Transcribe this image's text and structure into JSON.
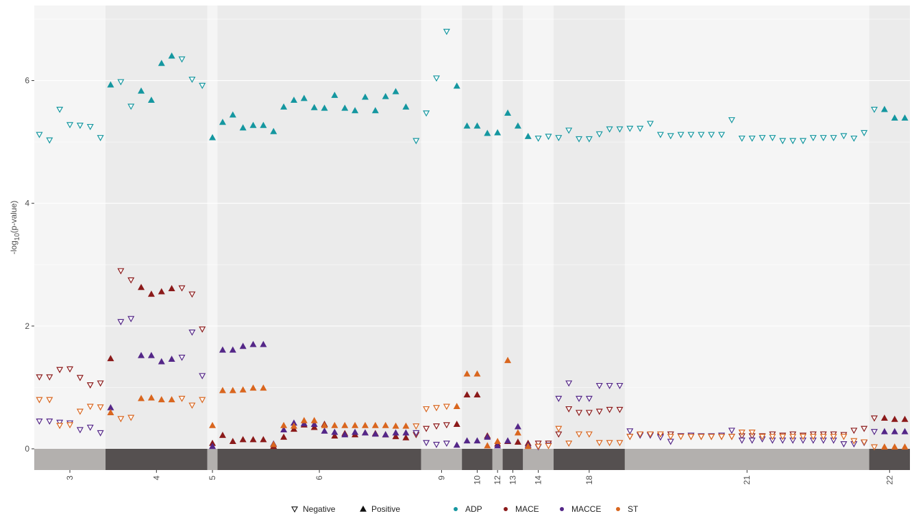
{
  "chart_data": {
    "type": "scatter",
    "ylabel_main": "-log",
    "ylabel_sub": "10",
    "ylabel_tail": "(p-value)",
    "ylim": [
      0,
      7
    ],
    "yticks": [
      0,
      2,
      4,
      6
    ],
    "grid": true,
    "legend_placement": "bottom",
    "legend": {
      "shapes": [
        {
          "label": "Negative",
          "shape": "open-down-triangle"
        },
        {
          "label": "Positive",
          "shape": "filled-up-triangle"
        }
      ],
      "colors": [
        {
          "label": "ADP",
          "color": "#1597a0"
        },
        {
          "label": "MACE",
          "color": "#8b1a1a"
        },
        {
          "label": "MACCE",
          "color": "#542788"
        },
        {
          "label": "ST",
          "color": "#d9661f"
        }
      ]
    },
    "chromosomes": [
      {
        "label": "3",
        "start": 0,
        "end": 7
      },
      {
        "label": "4",
        "start": 7,
        "end": 17
      },
      {
        "label": "5",
        "start": 17,
        "end": 18
      },
      {
        "label": "6",
        "start": 18,
        "end": 38
      },
      {
        "label": "9",
        "start": 38,
        "end": 42
      },
      {
        "label": "10",
        "start": 42,
        "end": 45
      },
      {
        "label": "12",
        "start": 45,
        "end": 46
      },
      {
        "label": "13",
        "start": 46,
        "end": 48
      },
      {
        "label": "14",
        "start": 48,
        "end": 51
      },
      {
        "label": "18",
        "start": 51,
        "end": 58
      },
      {
        "label": "21",
        "start": 58,
        "end": 82
      },
      {
        "label": "22",
        "start": 82,
        "end": 86
      }
    ],
    "sign_by_position": [
      "N",
      "N",
      "N",
      "N",
      "N",
      "N",
      "N",
      "P",
      "N",
      "N",
      "P",
      "P",
      "P",
      "P",
      "N",
      "N",
      "N",
      "P",
      "P",
      "P",
      "P",
      "P",
      "P",
      "P",
      "P",
      "P",
      "P",
      "P",
      "P",
      "P",
      "P",
      "P",
      "P",
      "P",
      "P",
      "P",
      "P",
      "N",
      "N",
      "N",
      "N",
      "P",
      "P",
      "P",
      "P",
      "P",
      "P",
      "P",
      "P",
      "N",
      "N",
      "N",
      "N",
      "N",
      "N",
      "N",
      "N",
      "N",
      "N",
      "N",
      "N",
      "N",
      "N",
      "N",
      "N",
      "N",
      "N",
      "N",
      "N",
      "N",
      "N",
      "N",
      "N",
      "N",
      "N",
      "N",
      "N",
      "N",
      "N",
      "N",
      "N",
      "N",
      "N",
      "P",
      "P",
      "P"
    ],
    "series": [
      {
        "name": "ADP",
        "values": [
          5.12,
          5.03,
          5.53,
          5.28,
          5.27,
          5.25,
          5.07,
          5.93,
          5.98,
          5.58,
          5.83,
          5.68,
          6.28,
          6.4,
          6.35,
          6.02,
          5.92,
          5.07,
          5.32,
          5.44,
          5.23,
          5.27,
          5.27,
          5.17,
          5.57,
          5.68,
          5.71,
          5.56,
          5.55,
          5.76,
          5.55,
          5.51,
          5.73,
          5.51,
          5.74,
          5.82,
          5.57,
          5.02,
          5.47,
          6.04,
          6.8,
          5.91,
          5.26,
          5.26,
          5.14,
          5.15,
          5.47,
          5.26,
          5.09,
          5.06,
          5.09,
          5.07,
          5.19,
          5.05,
          5.05,
          5.13,
          5.21,
          5.21,
          5.22,
          5.22,
          5.3,
          5.12,
          5.1,
          5.12,
          5.12,
          5.12,
          5.12,
          5.12,
          5.36,
          5.06,
          5.06,
          5.07,
          5.07,
          5.02,
          5.02,
          5.02,
          5.07,
          5.07,
          5.07,
          5.1,
          5.06,
          5.15,
          5.53,
          5.53,
          5.39,
          5.39
        ]
      },
      {
        "name": "MACE",
        "values": [
          1.17,
          1.17,
          1.29,
          1.3,
          1.16,
          1.04,
          1.07,
          1.47,
          2.9,
          2.75,
          2.63,
          2.52,
          2.56,
          2.61,
          2.62,
          2.52,
          1.95,
          0.09,
          0.22,
          0.12,
          0.15,
          0.15,
          0.15,
          0.04,
          0.19,
          0.32,
          0.39,
          0.35,
          0.4,
          0.21,
          0.25,
          0.23,
          0.26,
          0.25,
          0.23,
          0.2,
          0.18,
          0.23,
          0.33,
          0.37,
          0.39,
          0.4,
          0.88,
          0.88,
          0.21,
          0.08,
          0.12,
          0.11,
          0.09,
          0.09,
          0.09,
          0.24,
          0.65,
          0.59,
          0.59,
          0.61,
          0.64,
          0.64,
          0.2,
          0.23,
          0.23,
          0.21,
          0.24,
          0.21,
          0.2,
          0.2,
          0.2,
          0.2,
          0.2,
          0.21,
          0.21,
          0.21,
          0.24,
          0.22,
          0.24,
          0.22,
          0.24,
          0.24,
          0.24,
          0.23,
          0.3,
          0.33,
          0.5,
          0.5,
          0.48,
          0.48
        ]
      },
      {
        "name": "MACCE",
        "values": [
          0.45,
          0.45,
          0.43,
          0.42,
          0.31,
          0.35,
          0.26,
          0.67,
          2.07,
          2.12,
          1.52,
          1.52,
          1.42,
          1.46,
          1.49,
          1.9,
          1.19,
          0.04,
          1.61,
          1.61,
          1.67,
          1.7,
          1.7,
          0.08,
          0.31,
          0.42,
          0.41,
          0.4,
          0.29,
          0.27,
          0.23,
          0.27,
          0.26,
          0.24,
          0.23,
          0.26,
          0.26,
          0.26,
          0.1,
          0.07,
          0.09,
          0.06,
          0.13,
          0.13,
          0.19,
          0.05,
          0.13,
          0.36,
          0.06,
          0.03,
          0.06,
          0.82,
          1.07,
          0.82,
          0.82,
          1.03,
          1.03,
          1.03,
          0.29,
          0.22,
          0.22,
          0.19,
          0.12,
          0.21,
          0.22,
          0.21,
          0.21,
          0.22,
          0.3,
          0.14,
          0.14,
          0.16,
          0.14,
          0.14,
          0.14,
          0.14,
          0.14,
          0.14,
          0.14,
          0.08,
          0.08,
          0.1,
          0.28,
          0.28,
          0.28,
          0.28
        ]
      },
      {
        "name": "ST",
        "values": [
          0.8,
          0.8,
          0.38,
          0.39,
          0.61,
          0.69,
          0.68,
          0.59,
          0.49,
          0.51,
          0.82,
          0.83,
          0.8,
          0.8,
          0.82,
          0.71,
          0.8,
          0.38,
          0.95,
          0.95,
          0.96,
          0.99,
          0.99,
          0.07,
          0.38,
          0.37,
          0.46,
          0.46,
          0.38,
          0.38,
          0.38,
          0.38,
          0.38,
          0.38,
          0.38,
          0.37,
          0.37,
          0.37,
          0.65,
          0.67,
          0.69,
          0.69,
          1.22,
          1.22,
          0.05,
          0.12,
          1.44,
          0.26,
          0.04,
          0.04,
          0.05,
          0.33,
          0.09,
          0.24,
          0.24,
          0.1,
          0.1,
          0.1,
          0.2,
          0.24,
          0.24,
          0.24,
          0.2,
          0.2,
          0.2,
          0.2,
          0.2,
          0.2,
          0.2,
          0.27,
          0.27,
          0.2,
          0.2,
          0.2,
          0.2,
          0.2,
          0.2,
          0.2,
          0.2,
          0.2,
          0.13,
          0.11,
          0.03,
          0.03,
          0.03,
          0.03
        ]
      }
    ]
  }
}
